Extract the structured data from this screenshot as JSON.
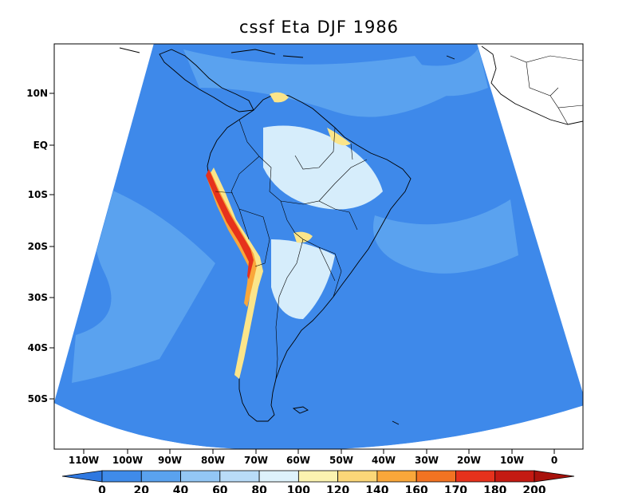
{
  "title": "cssf Eta DJF 1986",
  "lat_ticks": [
    "10N",
    "EQ",
    "10S",
    "20S",
    "30S",
    "40S",
    "50S"
  ],
  "lon_ticks": [
    "110W",
    "100W",
    "90W",
    "80W",
    "70W",
    "60W",
    "50W",
    "40W",
    "30W",
    "20W",
    "10W",
    "0"
  ],
  "colorbar": {
    "labels": [
      "0",
      "20",
      "40",
      "60",
      "80",
      "100",
      "120",
      "140",
      "160",
      "170",
      "180",
      "200"
    ],
    "colors": [
      "#2f78e0",
      "#3f8bea",
      "#5aa2ef",
      "#93c7f5",
      "#b9dcf8",
      "#def2fb",
      "#fbf3b0",
      "#fbd778",
      "#f9a73a",
      "#f27322",
      "#e6321c",
      "#c41a12",
      "#a8120c"
    ]
  },
  "map_colors": {
    "ocean_base": "#3e89ea",
    "ocean_inner": "#5aa2ef",
    "land_base": "#a9d3f6",
    "land_light": "#d6edfb",
    "andes_yellow": "#fbe58a",
    "andes_orange": "#f9a73a",
    "andes_red": "#e6321c"
  }
}
